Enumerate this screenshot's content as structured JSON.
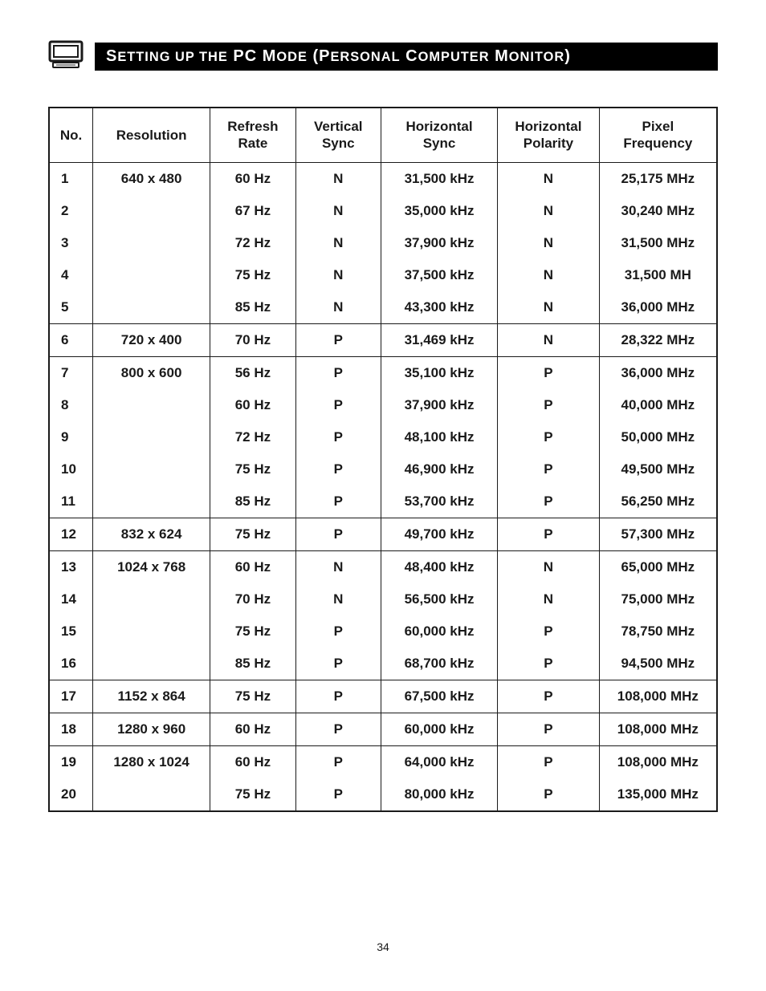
{
  "page": {
    "title_html": "S<span class='smallcap'>ETTING UP THE</span> PC M<span class='smallcap'>ODE</span> (P<span class='smallcap'>ERSONAL</span> C<span class='smallcap'>OMPUTER</span> M<span class='smallcap'>ONITOR</span>)",
    "page_number": "34",
    "icon_stroke": "#1a1a1a",
    "title_bg": "#000000",
    "title_fg": "#ffffff",
    "border_color": "#1a1a1a",
    "font_family": "Gill Sans",
    "header_fontsize": 17,
    "cell_fontsize": 17
  },
  "table": {
    "columns": [
      {
        "key": "no",
        "label": "No."
      },
      {
        "key": "resolution",
        "label": "Resolution"
      },
      {
        "key": "refresh",
        "label": "Refresh\nRate"
      },
      {
        "key": "vsync",
        "label": "Vertical\nSync"
      },
      {
        "key": "hsync",
        "label": "Horizontal\nSync"
      },
      {
        "key": "hpol",
        "label": "Horizontal\nPolarity"
      },
      {
        "key": "pixfreq",
        "label": "Pixel\nFrequency"
      }
    ],
    "rows": [
      {
        "no": "1",
        "resolution": "640  x  480",
        "refresh": "60  Hz",
        "vsync": "N",
        "hsync": "31,500  kHz",
        "hpol": "N",
        "pixfreq": "25,175  MHz",
        "group_start": true
      },
      {
        "no": "2",
        "resolution": "",
        "refresh": "67  Hz",
        "vsync": "N",
        "hsync": "35,000  kHz",
        "hpol": "N",
        "pixfreq": "30,240  MHz"
      },
      {
        "no": "3",
        "resolution": "",
        "refresh": "72  Hz",
        "vsync": "N",
        "hsync": "37,900  kHz",
        "hpol": "N",
        "pixfreq": "31,500  MHz"
      },
      {
        "no": "4",
        "resolution": "",
        "refresh": "75  Hz",
        "vsync": "N",
        "hsync": "37,500  kHz",
        "hpol": "N",
        "pixfreq": "31,500  MH"
      },
      {
        "no": "5",
        "resolution": "",
        "refresh": "85  Hz",
        "vsync": "N",
        "hsync": "43,300  kHz",
        "hpol": "N",
        "pixfreq": "36,000  MHz"
      },
      {
        "no": "6",
        "resolution": "720  x  400",
        "refresh": "70  Hz",
        "vsync": "P",
        "hsync": "31,469  kHz",
        "hpol": "N",
        "pixfreq": "28,322  MHz",
        "group_start": true
      },
      {
        "no": "7",
        "resolution": "800  x  600",
        "refresh": "56  Hz",
        "vsync": "P",
        "hsync": "35,100  kHz",
        "hpol": "P",
        "pixfreq": "36,000  MHz",
        "group_start": true
      },
      {
        "no": "8",
        "resolution": "",
        "refresh": "60  Hz",
        "vsync": "P",
        "hsync": "37,900  kHz",
        "hpol": "P",
        "pixfreq": "40,000  MHz"
      },
      {
        "no": "9",
        "resolution": "",
        "refresh": "72  Hz",
        "vsync": "P",
        "hsync": "48,100  kHz",
        "hpol": "P",
        "pixfreq": "50,000  MHz"
      },
      {
        "no": "10",
        "resolution": "",
        "refresh": "75  Hz",
        "vsync": "P",
        "hsync": "46,900  kHz",
        "hpol": "P",
        "pixfreq": "49,500  MHz"
      },
      {
        "no": "11",
        "resolution": "",
        "refresh": "85  Hz",
        "vsync": "P",
        "hsync": "53,700  kHz",
        "hpol": "P",
        "pixfreq": "56,250  MHz"
      },
      {
        "no": "12",
        "resolution": "832  x  624",
        "refresh": "75  Hz",
        "vsync": "P",
        "hsync": "49,700  kHz",
        "hpol": "P",
        "pixfreq": "57,300  MHz",
        "group_start": true
      },
      {
        "no": "13",
        "resolution": "1024  x  768",
        "refresh": "60  Hz",
        "vsync": "N",
        "hsync": "48,400  kHz",
        "hpol": "N",
        "pixfreq": "65,000  MHz",
        "group_start": true
      },
      {
        "no": "14",
        "resolution": "",
        "refresh": "70  Hz",
        "vsync": "N",
        "hsync": "56,500  kHz",
        "hpol": "N",
        "pixfreq": "75,000  MHz"
      },
      {
        "no": "15",
        "resolution": "",
        "refresh": "75  Hz",
        "vsync": "P",
        "hsync": "60,000  kHz",
        "hpol": "P",
        "pixfreq": "78,750  MHz"
      },
      {
        "no": "16",
        "resolution": "",
        "refresh": "85  Hz",
        "vsync": "P",
        "hsync": "68,700  kHz",
        "hpol": "P",
        "pixfreq": "94,500  MHz"
      },
      {
        "no": "17",
        "resolution": "1152  x  864",
        "refresh": "75  Hz",
        "vsync": "P",
        "hsync": "67,500  kHz",
        "hpol": "P",
        "pixfreq": "108,000  MHz",
        "group_start": true
      },
      {
        "no": "18",
        "resolution": "1280  x  960",
        "refresh": "60  Hz",
        "vsync": "P",
        "hsync": "60,000  kHz",
        "hpol": "P",
        "pixfreq": "108,000  MHz",
        "group_start": true
      },
      {
        "no": "19",
        "resolution": "1280  x  1024",
        "refresh": "60  Hz",
        "vsync": "P",
        "hsync": "64,000  kHz",
        "hpol": "P",
        "pixfreq": "108,000  MHz",
        "group_start": true
      },
      {
        "no": "20",
        "resolution": "",
        "refresh": "75  Hz",
        "vsync": "P",
        "hsync": "80,000  kHz",
        "hpol": "P",
        "pixfreq": "135,000  MHz"
      }
    ]
  }
}
